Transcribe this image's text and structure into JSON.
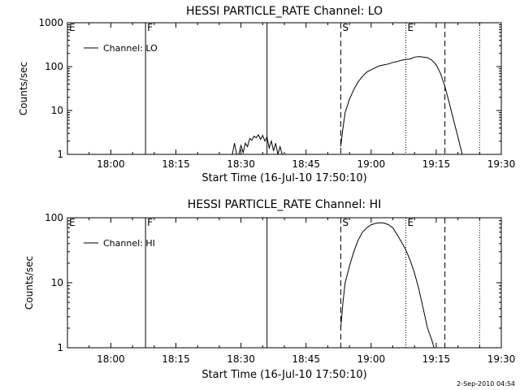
{
  "footer_date": "2-Sep-2010 04:54",
  "chart_data": [
    {
      "type": "line",
      "title": "HESSI PARTICLE_RATE Channel: LO",
      "xlabel": "Start Time (16-Jul-10 17:50:10)",
      "ylabel": "Counts/sec",
      "x_unit": "minutes after 17:50:10",
      "xlim": [
        0,
        100
      ],
      "ylim": [
        1,
        1000
      ],
      "yscale": "log",
      "x_ticks": [
        {
          "x": 10,
          "label": "18:00"
        },
        {
          "x": 25,
          "label": "18:15"
        },
        {
          "x": 40,
          "label": "18:30"
        },
        {
          "x": 55,
          "label": "18:45"
        },
        {
          "x": 70,
          "label": "19:00"
        },
        {
          "x": 85,
          "label": "19:15"
        },
        {
          "x": 100,
          "label": "19:30"
        }
      ],
      "y_ticks": [
        {
          "y": 1,
          "label": "1"
        },
        {
          "y": 10,
          "label": "10"
        },
        {
          "y": 100,
          "label": "100"
        },
        {
          "y": 1000,
          "label": "1000"
        }
      ],
      "legend": {
        "label": "Channel: LO",
        "position": "top-left"
      },
      "markers": [
        {
          "x": 0,
          "label": "E",
          "style": "solid"
        },
        {
          "x": 18,
          "label": "F",
          "style": "solid"
        },
        {
          "x": 46,
          "label": "",
          "style": "solid"
        },
        {
          "x": 63,
          "label": "S",
          "style": "dashed"
        },
        {
          "x": 78,
          "label": "E",
          "style": "dotted"
        },
        {
          "x": 87,
          "label": "",
          "style": "dashed"
        },
        {
          "x": 95,
          "label": "",
          "style": "dotted"
        }
      ],
      "series": [
        {
          "segments": [
            [
              [
                38,
                1
              ],
              [
                38.5,
                1.8
              ],
              [
                39,
                1
              ],
              [
                39.5,
                1
              ],
              [
                40,
                1.6
              ],
              [
                40.5,
                1.1
              ],
              [
                41,
                1.8
              ],
              [
                41.5,
                1.5
              ],
              [
                42,
                2.3
              ],
              [
                42.5,
                2.1
              ],
              [
                43,
                2.6
              ],
              [
                43.5,
                2.4
              ],
              [
                44,
                2.8
              ],
              [
                44.5,
                2.2
              ],
              [
                45,
                2.7
              ],
              [
                45.5,
                2.0
              ],
              [
                46,
                2.5
              ],
              [
                46.5,
                1.4
              ],
              [
                47,
                2.0
              ],
              [
                47.5,
                1.2
              ],
              [
                48,
                1.8
              ],
              [
                48.5,
                1.0
              ],
              [
                49,
                1.5
              ],
              [
                49.5,
                1.0
              ]
            ],
            [
              [
                63,
                1.5
              ],
              [
                63.5,
                4
              ],
              [
                64,
                9
              ],
              [
                65,
                18
              ],
              [
                66,
                30
              ],
              [
                67,
                45
              ],
              [
                68,
                60
              ],
              [
                69,
                75
              ],
              [
                70,
                85
              ],
              [
                71,
                95
              ],
              [
                72,
                105
              ],
              [
                73,
                110
              ],
              [
                74,
                115
              ],
              [
                75,
                125
              ],
              [
                76,
                130
              ],
              [
                77,
                140
              ],
              [
                78,
                145
              ],
              [
                79,
                150
              ],
              [
                80,
                165
              ],
              [
                81,
                170
              ],
              [
                82,
                165
              ],
              [
                83,
                160
              ],
              [
                84,
                140
              ],
              [
                85,
                110
              ],
              [
                86,
                70
              ],
              [
                87,
                35
              ],
              [
                88,
                15
              ],
              [
                89,
                6
              ],
              [
                90,
                2.5
              ],
              [
                91,
                1
              ]
            ]
          ]
        }
      ]
    },
    {
      "type": "line",
      "title": "HESSI PARTICLE_RATE Channel: HI",
      "xlabel": "Start Time (16-Jul-10 17:50:10)",
      "ylabel": "Counts/sec",
      "x_unit": "minutes after 17:50:10",
      "xlim": [
        0,
        100
      ],
      "ylim": [
        1,
        100
      ],
      "yscale": "log",
      "x_ticks": [
        {
          "x": 10,
          "label": "18:00"
        },
        {
          "x": 25,
          "label": "18:15"
        },
        {
          "x": 40,
          "label": "18:30"
        },
        {
          "x": 55,
          "label": "18:45"
        },
        {
          "x": 70,
          "label": "19:00"
        },
        {
          "x": 85,
          "label": "19:15"
        },
        {
          "x": 100,
          "label": "19:30"
        }
      ],
      "y_ticks": [
        {
          "y": 1,
          "label": "1"
        },
        {
          "y": 10,
          "label": "10"
        },
        {
          "y": 100,
          "label": "100"
        }
      ],
      "legend": {
        "label": "Channel: HI",
        "position": "top-left"
      },
      "markers": [
        {
          "x": 0,
          "label": "E",
          "style": "solid"
        },
        {
          "x": 18,
          "label": "F",
          "style": "solid"
        },
        {
          "x": 46,
          "label": "",
          "style": "solid"
        },
        {
          "x": 63,
          "label": "S",
          "style": "dashed"
        },
        {
          "x": 78,
          "label": "E",
          "style": "dotted"
        },
        {
          "x": 87,
          "label": "",
          "style": "dashed"
        },
        {
          "x": 95,
          "label": "",
          "style": "dotted"
        }
      ],
      "series": [
        {
          "segments": [
            [
              [
                63,
                2
              ],
              [
                63.5,
                5
              ],
              [
                64,
                10
              ],
              [
                65,
                18
              ],
              [
                66,
                30
              ],
              [
                67,
                45
              ],
              [
                68,
                60
              ],
              [
                69,
                70
              ],
              [
                70,
                78
              ],
              [
                71,
                82
              ],
              [
                72,
                84
              ],
              [
                73,
                83
              ],
              [
                74,
                78
              ],
              [
                75,
                70
              ],
              [
                76,
                55
              ],
              [
                77,
                42
              ],
              [
                78,
                32
              ],
              [
                79,
                22
              ],
              [
                80,
                14
              ],
              [
                81,
                8
              ],
              [
                82,
                4
              ],
              [
                83,
                2
              ],
              [
                84,
                1.3
              ],
              [
                84.5,
                1
              ]
            ]
          ]
        }
      ]
    }
  ]
}
